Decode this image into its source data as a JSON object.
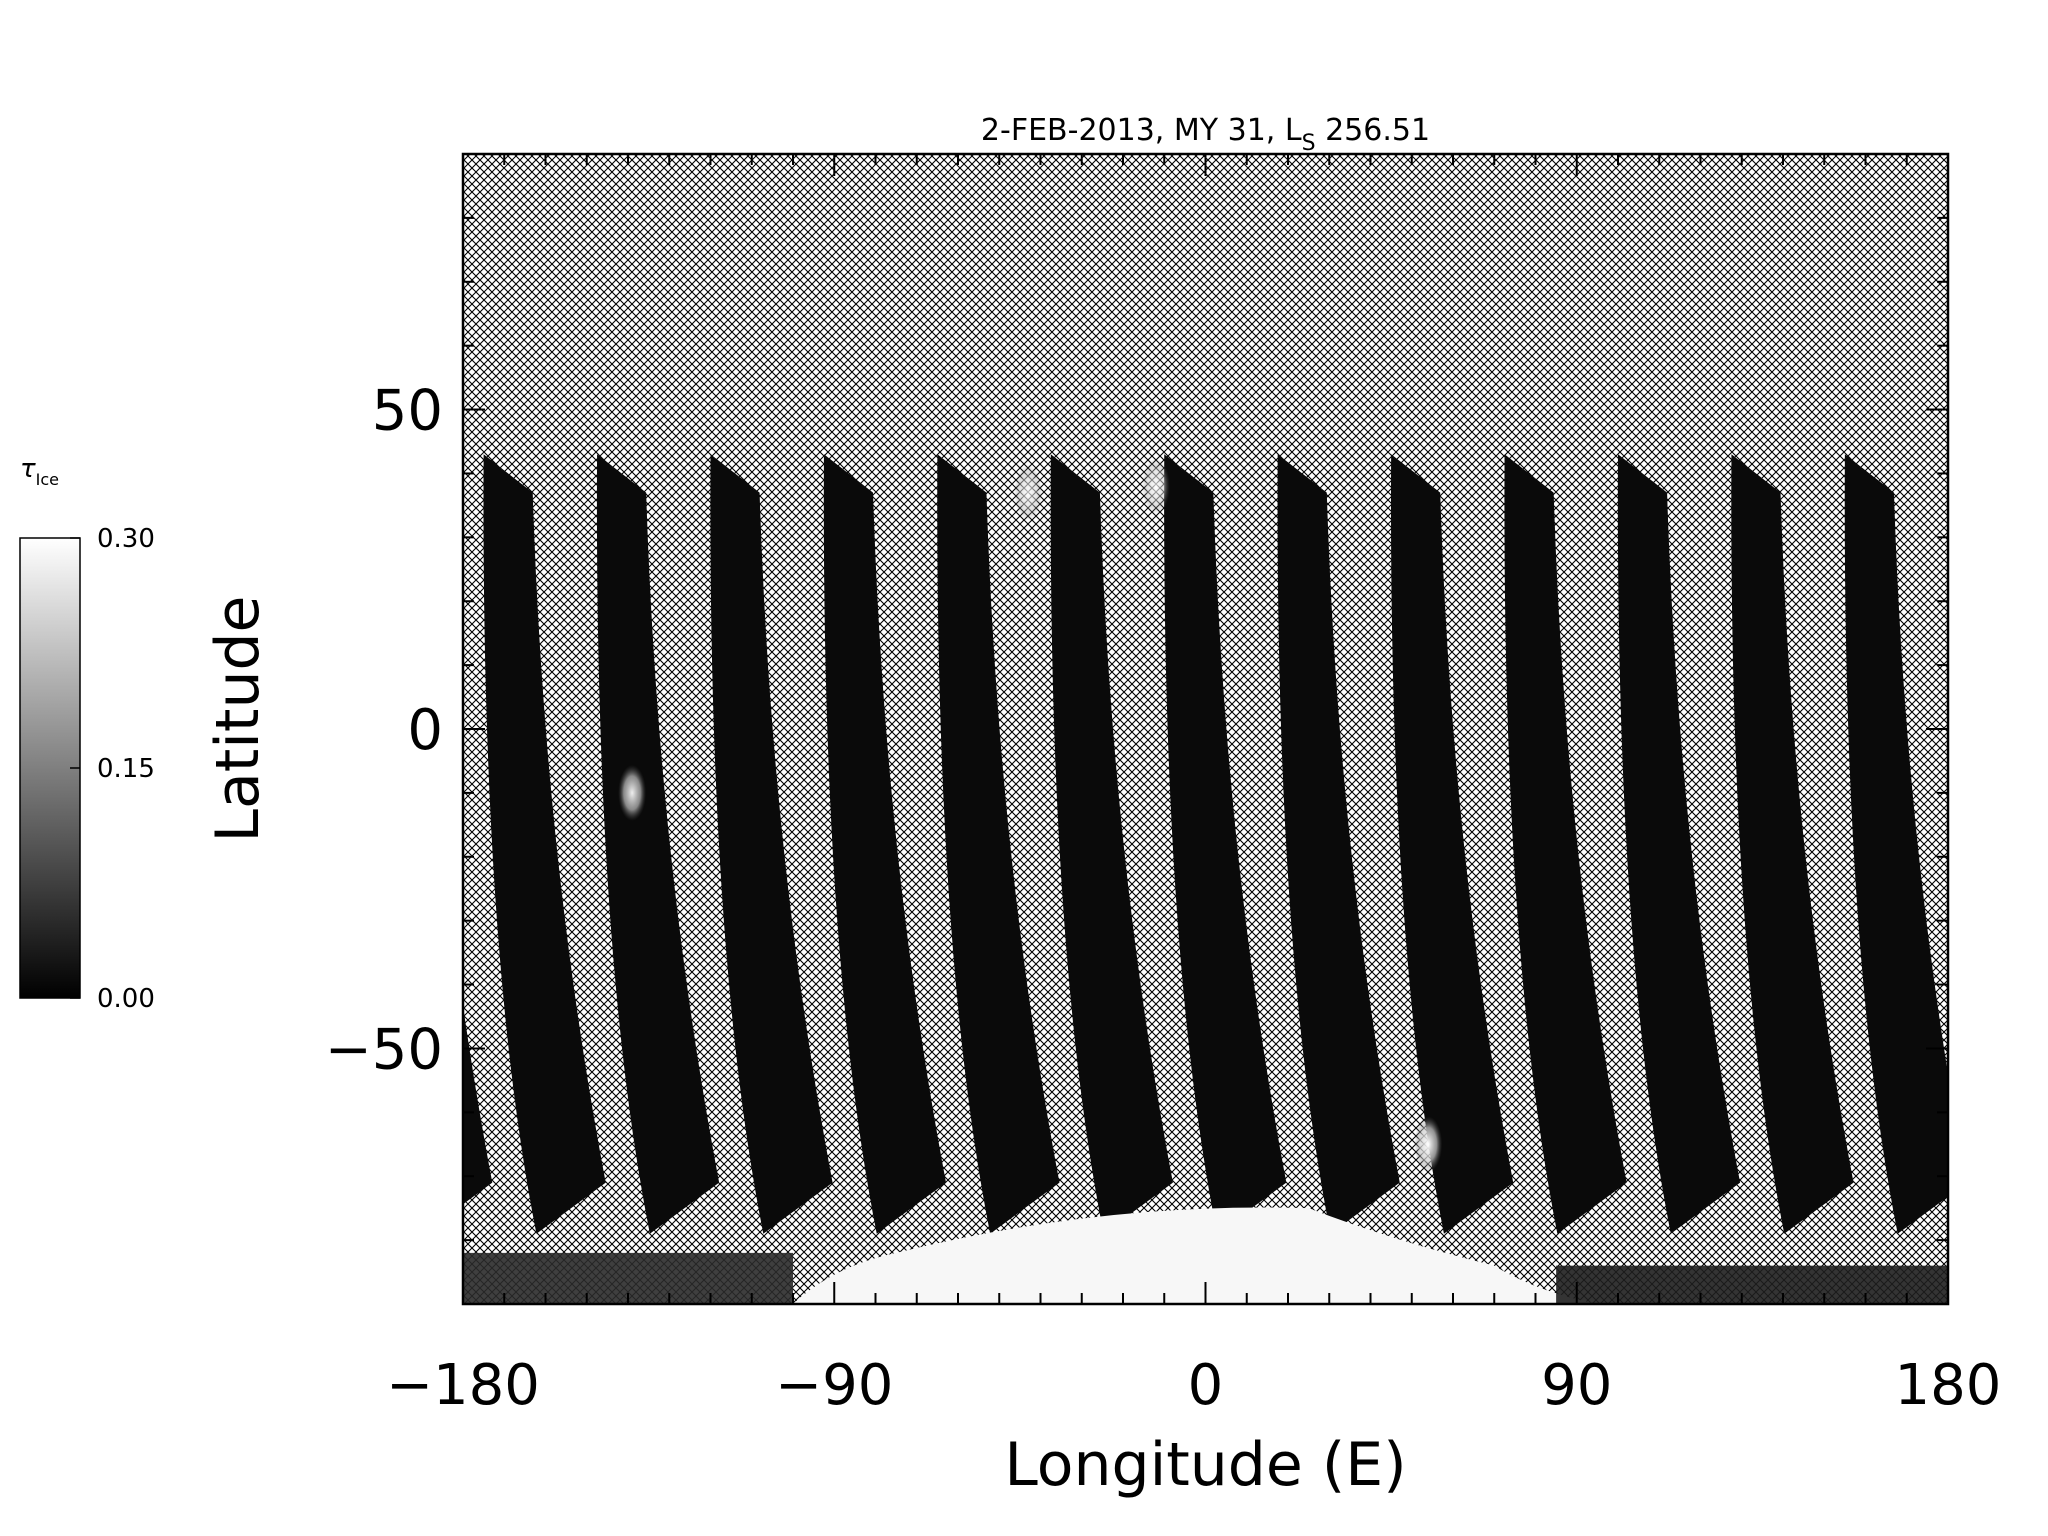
{
  "chart_data": {
    "type": "heatmap",
    "title": {
      "main": "2-FEB-2013, MY 31,  L",
      "subscript": "S",
      "suffix": " 256.51"
    },
    "xlabel": "Longitude (E)",
    "ylabel": "Latitude",
    "xlim": [
      -180,
      180
    ],
    "ylim": [
      -90,
      90
    ],
    "xticks": [
      {
        "value": -180,
        "label": "−180"
      },
      {
        "value": -90,
        "label": "−90"
      },
      {
        "value": 0,
        "label": "0"
      },
      {
        "value": 90,
        "label": "90"
      },
      {
        "value": 180,
        "label": "180"
      }
    ],
    "yticks": [
      {
        "value": 50,
        "label": "50"
      },
      {
        "value": 0,
        "label": "0"
      },
      {
        "value": -50,
        "label": "−50"
      }
    ],
    "x_minor_step": 10,
    "y_minor_step": 10,
    "colorbar": {
      "label": "τ",
      "label_sub": "Ice",
      "min": 0.0,
      "max": 0.3,
      "ticks": [
        "0.30",
        "0.15",
        "0.00"
      ],
      "colormap": "grayscale",
      "low_color": "#000000",
      "high_color": "#ffffff"
    },
    "no_data_pattern": "crosshatch",
    "swaths": {
      "count": 13,
      "first_top_lon": -175,
      "spacing_lon": 27.5,
      "top_lat": 43,
      "bottom_lat": -77,
      "drift_lon": 17,
      "width_lon": 14
    },
    "polar_cap": {
      "edge_lat": -90,
      "peak_lon": -25,
      "peak_lat": -71,
      "extent_lon": [
        -100,
        70
      ]
    },
    "bright_spots": [
      {
        "lon": -139,
        "lat": -10,
        "value": 0.28
      },
      {
        "lon": -43,
        "lat": 37,
        "value": 0.22
      },
      {
        "lon": -12,
        "lat": 38,
        "value": 0.22
      },
      {
        "lon": 54,
        "lat": -65,
        "value": 0.3
      }
    ]
  }
}
